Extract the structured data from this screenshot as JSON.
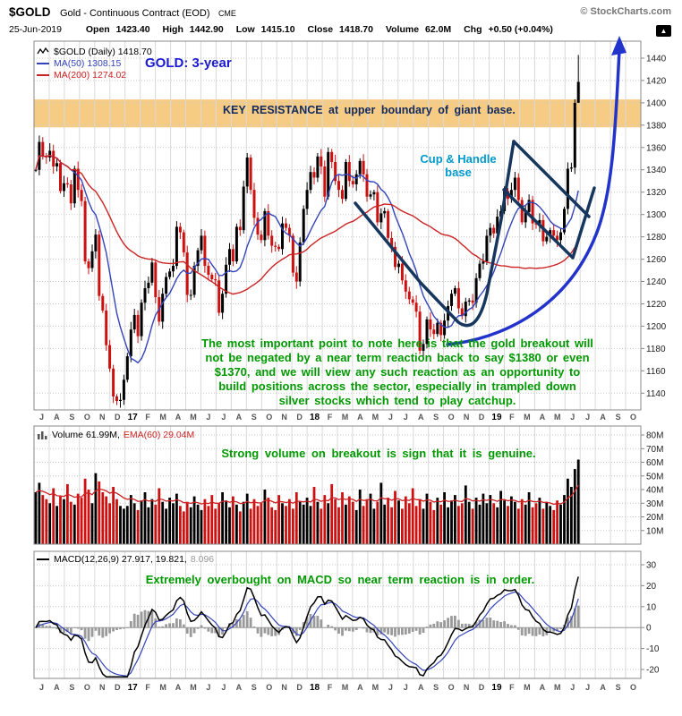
{
  "header": {
    "symbol": "$GOLD",
    "name": "Gold - Continuous Contract (EOD)",
    "exchange": "CME",
    "copyright": "© StockCharts.com",
    "date": "25-Jun-2019",
    "quote": {
      "open_label": "Open",
      "open": "1423.40",
      "high_label": "High",
      "high": "1442.90",
      "low_label": "Low",
      "low": "1415.10",
      "close_label": "Close",
      "close": "1418.70",
      "volume_label": "Volume",
      "volume": "62.0M",
      "chg_label": "Chg",
      "chg": "+0.50 (+0.04%)"
    }
  },
  "icons": {
    "chart_up": "▲"
  },
  "main_panel": {
    "legend": {
      "symbol": "$GOLD (Daily) 1418.70",
      "ma50": "MA(50) 1308.15",
      "ma200": "MA(200) 1274.02"
    },
    "annotations": {
      "title": "GOLD: 3-year",
      "resistance": "KEY RESISTANCE at upper boundary of giant base.",
      "cup_line1": "Cup & Handle",
      "cup_line2": "base",
      "commentary_lines": [
        "The most important point to note here is that the gold breakout will",
        "not be negated by a near term reaction back to say $1380 or even",
        "$1370, and we will view any such reaction as an opportunity to",
        "build positions across the sector, especially in trampled down",
        "silver stocks which tend to play catchup."
      ]
    }
  },
  "volume_panel": {
    "legend_volume": "Volume 61.99M,",
    "legend_ema": "EMA(60) 29.04M",
    "annotation": "Strong volume on breakout is sign that it is genuine."
  },
  "macd_panel": {
    "legend_main": "MACD(12,26,9) 27.917, 19.821,",
    "legend_hist": "8.096",
    "annotation": "Extremely overbought on MACD so near term reaction is in order."
  },
  "colors": {
    "up": "#000000",
    "down": "#cc1111",
    "ma50": "#3344bb",
    "ma200": "#cc2222",
    "volume_ema": "#cc2222",
    "band": "#f5c678",
    "macd": "#000000",
    "signal": "#3344bb",
    "hist": "#9a9a9a",
    "arrow": "#2233cc",
    "cup": "#17365d",
    "green": "#009900",
    "cyan": "#0099cc",
    "navy": "#12295e",
    "title_blue": "#1a1ad0"
  },
  "chart_data": [
    {
      "type": "candlestick",
      "title": "$GOLD (Daily)",
      "x_months": [
        "J",
        "A",
        "S",
        "O",
        "N",
        "D",
        "17",
        "F",
        "M",
        "A",
        "M",
        "J",
        "J",
        "A",
        "S",
        "O",
        "N",
        "D",
        "18",
        "F",
        "M",
        "A",
        "M",
        "J",
        "J",
        "A",
        "S",
        "O",
        "N",
        "D",
        "19",
        "F",
        "M",
        "A",
        "M",
        "J",
        "J",
        "A",
        "S",
        "O"
      ],
      "year_indices": [
        6,
        18,
        30
      ],
      "ylim": [
        1125,
        1452
      ],
      "yticks": [
        1140,
        1160,
        1180,
        1200,
        1220,
        1240,
        1260,
        1280,
        1300,
        1320,
        1340,
        1360,
        1380,
        1400,
        1420,
        1440
      ],
      "resistance_band": [
        1378,
        1403
      ],
      "last_high": 1442.9,
      "last_low": 1415.1,
      "overlays": {
        "ma50_weeks": 10,
        "ma200_weeks": 43
      },
      "weekly_closes": [
        1340,
        1365,
        1352,
        1351,
        1357,
        1343,
        1346,
        1321,
        1328,
        1327,
        1310,
        1341,
        1322,
        1312,
        1258,
        1252,
        1267,
        1282,
        1227,
        1214,
        1183,
        1162,
        1137,
        1133,
        1134,
        1152,
        1173,
        1197,
        1210,
        1191,
        1221,
        1234,
        1239,
        1257,
        1226,
        1204,
        1229,
        1244,
        1249,
        1254,
        1289,
        1284,
        1266,
        1228,
        1228,
        1254,
        1268,
        1281,
        1254,
        1246,
        1242,
        1241,
        1212,
        1229,
        1255,
        1269,
        1258,
        1289,
        1286,
        1325,
        1351,
        1322,
        1297,
        1282,
        1277,
        1303,
        1281,
        1272,
        1271,
        1269,
        1292,
        1288,
        1281,
        1248,
        1240,
        1275,
        1305,
        1322,
        1338,
        1333,
        1352,
        1343,
        1316,
        1356,
        1347,
        1330,
        1322,
        1314,
        1347,
        1330,
        1327,
        1336,
        1348,
        1336,
        1316,
        1318,
        1320,
        1293,
        1301,
        1303,
        1279,
        1271,
        1253,
        1256,
        1241,
        1231,
        1224,
        1221,
        1213,
        1178,
        1184,
        1206,
        1197,
        1193,
        1203,
        1192,
        1205,
        1218,
        1229,
        1234,
        1216,
        1209,
        1222,
        1223,
        1221,
        1243,
        1256,
        1258,
        1281,
        1288,
        1283,
        1298,
        1303,
        1321,
        1314,
        1322,
        1333,
        1313,
        1293,
        1302,
        1313,
        1292,
        1291,
        1295,
        1276,
        1280,
        1286,
        1281,
        1277,
        1284,
        1305,
        1341,
        1342,
        1400,
        1418.7
      ]
    },
    {
      "type": "bar",
      "title": "Volume",
      "ylim_millions": [
        0,
        80
      ],
      "yticks_millions": [
        10,
        20,
        30,
        40,
        50,
        60,
        70,
        80
      ],
      "ema_weeks": 10,
      "weekly_volumes_millions": [
        38,
        45,
        36,
        33,
        30,
        41,
        28,
        35,
        33,
        44,
        31,
        29,
        37,
        34,
        48,
        40,
        30,
        52,
        46,
        38,
        35,
        30,
        42,
        33,
        28,
        26,
        28,
        36,
        30,
        25,
        32,
        38,
        27,
        33,
        29,
        41,
        31,
        26,
        34,
        30,
        37,
        28,
        24,
        31,
        27,
        35,
        29,
        25,
        33,
        28,
        36,
        26,
        30,
        38,
        32,
        27,
        35,
        29,
        24,
        31,
        37,
        26,
        33,
        28,
        30,
        40,
        34,
        27,
        25,
        36,
        30,
        28,
        33,
        26,
        38,
        31,
        29,
        34,
        28,
        42,
        31,
        26,
        36,
        30,
        44,
        33,
        27,
        38,
        29,
        35,
        31,
        25,
        40,
        28,
        33,
        37,
        26,
        31,
        45,
        29,
        34,
        27,
        39,
        32,
        26,
        35,
        30,
        41,
        28,
        33,
        26,
        37,
        31,
        25,
        34,
        29,
        38,
        27,
        32,
        36,
        28,
        30,
        43,
        31,
        26,
        34,
        29,
        37,
        30,
        36,
        30,
        27,
        39,
        32,
        28,
        35,
        31,
        26,
        33,
        29,
        38,
        27,
        30,
        34,
        26,
        31,
        28,
        25,
        32,
        29,
        36,
        48,
        42,
        55,
        62
      ]
    },
    {
      "type": "line",
      "title": "MACD(12,26,9)",
      "ylim": [
        -26,
        33
      ],
      "yticks": [
        30,
        20,
        10,
        0,
        -10,
        -20
      ],
      "last_values": {
        "macd": 27.917,
        "signal": 19.821,
        "hist": 8.096
      }
    }
  ]
}
